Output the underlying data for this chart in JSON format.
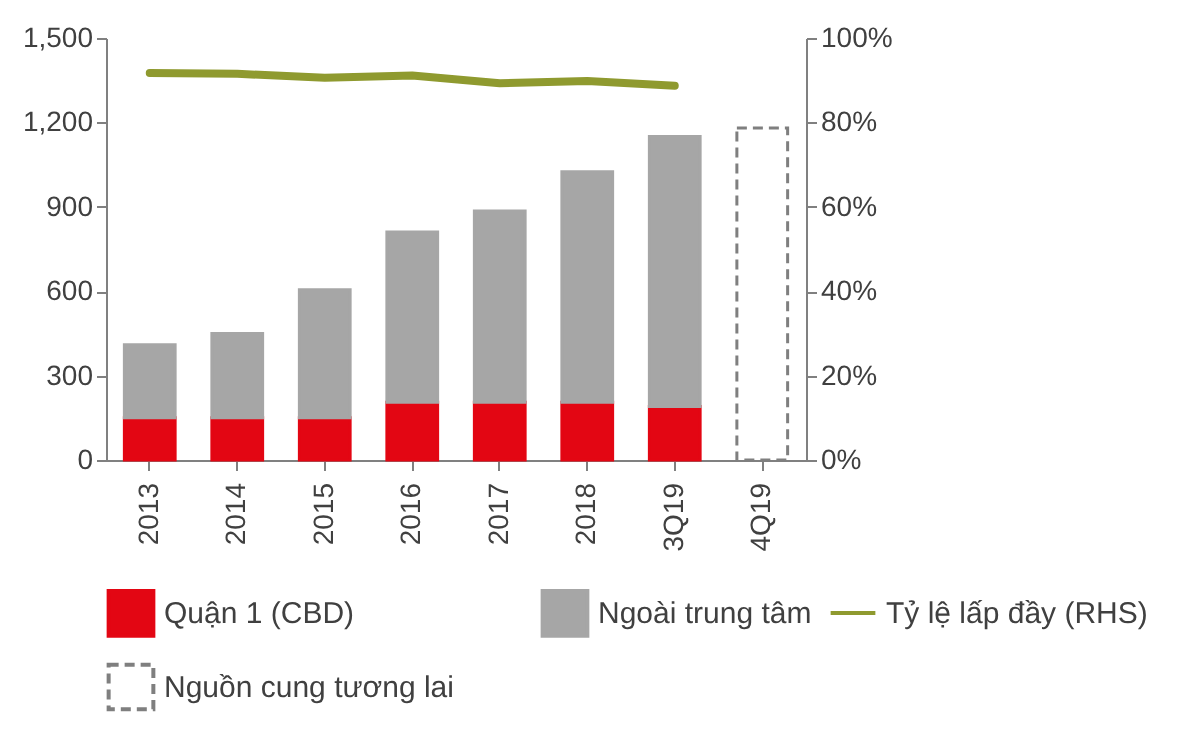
{
  "chart_data": {
    "type": "bar",
    "stacked": true,
    "categories": [
      "2013",
      "2014",
      "2015",
      "2016",
      "2017",
      "2018",
      "3Q19",
      "4Q19"
    ],
    "series": [
      {
        "name": "Quận 1 (CBD)",
        "color": "#e30613",
        "values": [
          150,
          150,
          150,
          205,
          205,
          205,
          190,
          null
        ]
      },
      {
        "name": "Ngoài trung tâm",
        "color": "#a6a6a6",
        "values": [
          260,
          300,
          455,
          605,
          680,
          820,
          960,
          null
        ]
      },
      {
        "name": "Nguồn cung tương lai",
        "color": "#7f7f7f",
        "line_style": "dashed",
        "values": [
          null,
          null,
          null,
          null,
          null,
          null,
          null,
          1180
        ]
      },
      {
        "name": "Tỷ lệ lấp đầy (RHS)",
        "type": "line",
        "axis": "y2",
        "color": "#8f9a2f",
        "values": [
          91.7,
          91.5,
          90.6,
          91.1,
          89.3,
          89.8,
          88.7,
          null
        ]
      }
    ],
    "ylim": [
      0,
      1500
    ],
    "yticks": [
      0,
      {
        "value": 300,
        "label": "300"
      },
      {
        "value": 600,
        "label": "600"
      },
      {
        "value": 900,
        "label": "900"
      },
      {
        "value": 1200,
        "label": "1,200"
      },
      {
        "value": 1500,
        "label": "1,500"
      }
    ],
    "y2lim": [
      0,
      100
    ],
    "y2ticks": [
      {
        "value": 0,
        "label": "0%"
      },
      {
        "value": 20,
        "label": "20%"
      },
      {
        "value": 40,
        "label": "40%"
      },
      {
        "value": 60,
        "label": "60%"
      },
      {
        "value": 80,
        "label": "80%"
      },
      {
        "value": 100,
        "label": "100%"
      }
    ],
    "legend": "bottom",
    "grid": false
  }
}
